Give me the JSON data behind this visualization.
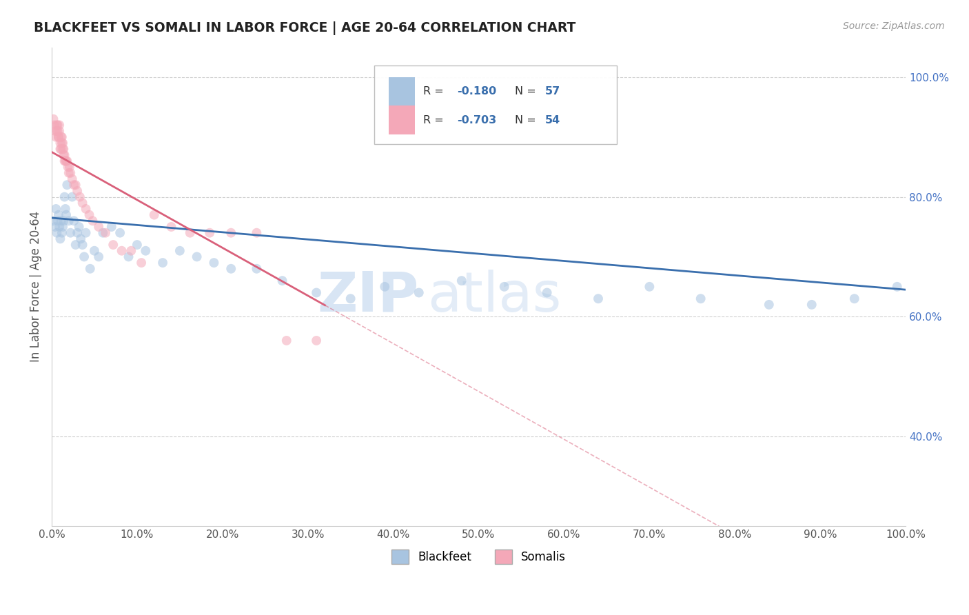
{
  "title": "BLACKFEET VS SOMALI IN LABOR FORCE | AGE 20-64 CORRELATION CHART",
  "source_text": "Source: ZipAtlas.com",
  "ylabel": "In Labor Force | Age 20-64",
  "watermark_zip": "ZIP",
  "watermark_atlas": "atlas",
  "blackfeet_color": "#a8c4e0",
  "somali_color": "#f4a8b8",
  "blackfeet_line_color": "#3a6fad",
  "somali_line_color": "#d9607a",
  "right_ytick_color": "#4472c4",
  "blackfeet_x": [
    0.002,
    0.004,
    0.005,
    0.006,
    0.007,
    0.008,
    0.009,
    0.01,
    0.011,
    0.012,
    0.013,
    0.014,
    0.015,
    0.016,
    0.017,
    0.018,
    0.02,
    0.022,
    0.024,
    0.026,
    0.028,
    0.03,
    0.032,
    0.034,
    0.036,
    0.038,
    0.04,
    0.045,
    0.05,
    0.055,
    0.06,
    0.07,
    0.08,
    0.09,
    0.1,
    0.11,
    0.13,
    0.15,
    0.17,
    0.19,
    0.21,
    0.24,
    0.27,
    0.31,
    0.35,
    0.39,
    0.43,
    0.48,
    0.53,
    0.58,
    0.64,
    0.7,
    0.76,
    0.84,
    0.89,
    0.94,
    0.99
  ],
  "blackfeet_y": [
    0.76,
    0.75,
    0.78,
    0.74,
    0.76,
    0.77,
    0.75,
    0.73,
    0.76,
    0.74,
    0.75,
    0.76,
    0.8,
    0.78,
    0.77,
    0.82,
    0.76,
    0.74,
    0.8,
    0.76,
    0.72,
    0.74,
    0.75,
    0.73,
    0.72,
    0.7,
    0.74,
    0.68,
    0.71,
    0.7,
    0.74,
    0.75,
    0.74,
    0.7,
    0.72,
    0.71,
    0.69,
    0.71,
    0.7,
    0.69,
    0.68,
    0.68,
    0.66,
    0.64,
    0.63,
    0.65,
    0.64,
    0.66,
    0.65,
    0.64,
    0.63,
    0.65,
    0.63,
    0.62,
    0.62,
    0.63,
    0.65
  ],
  "somali_x": [
    0.002,
    0.003,
    0.004,
    0.005,
    0.006,
    0.006,
    0.007,
    0.007,
    0.008,
    0.008,
    0.009,
    0.009,
    0.01,
    0.01,
    0.011,
    0.011,
    0.012,
    0.012,
    0.013,
    0.013,
    0.014,
    0.014,
    0.015,
    0.015,
    0.016,
    0.017,
    0.018,
    0.019,
    0.02,
    0.021,
    0.022,
    0.024,
    0.026,
    0.028,
    0.03,
    0.033,
    0.036,
    0.04,
    0.044,
    0.048,
    0.055,
    0.063,
    0.072,
    0.082,
    0.093,
    0.105,
    0.12,
    0.14,
    0.162,
    0.185,
    0.21,
    0.24,
    0.275,
    0.31
  ],
  "somali_y": [
    0.93,
    0.92,
    0.91,
    0.9,
    0.92,
    0.91,
    0.92,
    0.91,
    0.9,
    0.9,
    0.91,
    0.92,
    0.88,
    0.89,
    0.9,
    0.88,
    0.89,
    0.9,
    0.89,
    0.88,
    0.88,
    0.87,
    0.87,
    0.86,
    0.86,
    0.86,
    0.86,
    0.85,
    0.84,
    0.85,
    0.84,
    0.83,
    0.82,
    0.82,
    0.81,
    0.8,
    0.79,
    0.78,
    0.77,
    0.76,
    0.75,
    0.74,
    0.72,
    0.71,
    0.71,
    0.69,
    0.77,
    0.75,
    0.74,
    0.74,
    0.74,
    0.74,
    0.56,
    0.56
  ],
  "xlim": [
    0.0,
    1.0
  ],
  "ylim": [
    0.25,
    1.05
  ],
  "background_color": "#ffffff",
  "grid_color": "#d0d0d0",
  "title_color": "#222222",
  "marker_size": 100,
  "marker_alpha": 0.55,
  "line_width": 2.0
}
